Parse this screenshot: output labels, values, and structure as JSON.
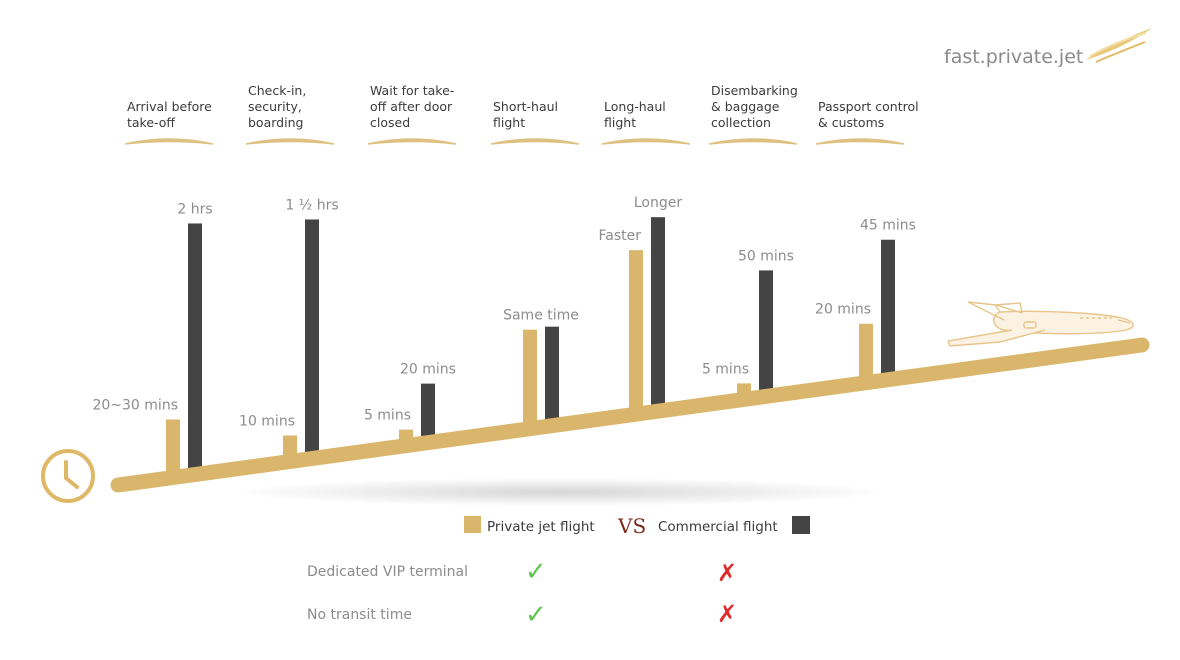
{
  "brand": {
    "name": "fast.private.jet"
  },
  "colors": {
    "private": "#d9b66c",
    "commercial": "#444444",
    "road": "#d9b66c",
    "vs": "#7a2a1a",
    "check": "#5cc64a",
    "cross": "#e02a2a"
  },
  "chart_data": {
    "type": "bar",
    "title": "",
    "categories": [
      {
        "lines": [
          "Arrival before",
          "take-off"
        ],
        "private_label": "20~30 mins",
        "commercial_label": "2 hrs"
      },
      {
        "lines": [
          "Check-in,",
          "security,",
          "boarding"
        ],
        "private_label": "10 mins",
        "commercial_label": "1 ½ hrs"
      },
      {
        "lines": [
          "Wait for take-",
          "off after door",
          "closed"
        ],
        "private_label": "5 mins",
        "commercial_label": "20 mins"
      },
      {
        "lines": [
          "Short-haul",
          "flight"
        ],
        "pair_label": "Same time"
      },
      {
        "lines": [
          "Long-haul",
          "flight"
        ],
        "private_label": "Faster",
        "commercial_label": "Longer"
      },
      {
        "lines": [
          "Disembarking",
          "& baggage",
          "collection"
        ],
        "private_label": "5 mins",
        "commercial_label": "50 mins"
      },
      {
        "lines": [
          "Passport control",
          "& customs"
        ],
        "private_label": "20 mins",
        "commercial_label": "45 mins"
      }
    ],
    "series": [
      {
        "name": "Private jet flight",
        "values": [
          25,
          10,
          5,
          40,
          70,
          5,
          20
        ]
      },
      {
        "name": "Commercial flight",
        "values": [
          120,
          90,
          20,
          40,
          80,
          50,
          45
        ]
      }
    ]
  },
  "legend": {
    "private": "Private jet flight",
    "vs": "VS",
    "commercial": "Commercial flight"
  },
  "features": [
    {
      "label": "Dedicated VIP terminal",
      "private": "✓",
      "commercial": "✗"
    },
    {
      "label": "No transit time",
      "private": "✓",
      "commercial": "✗"
    }
  ],
  "icons": {
    "clock": "clock-icon",
    "plane": "airplane-icon",
    "wing": "wing-logo-icon"
  }
}
